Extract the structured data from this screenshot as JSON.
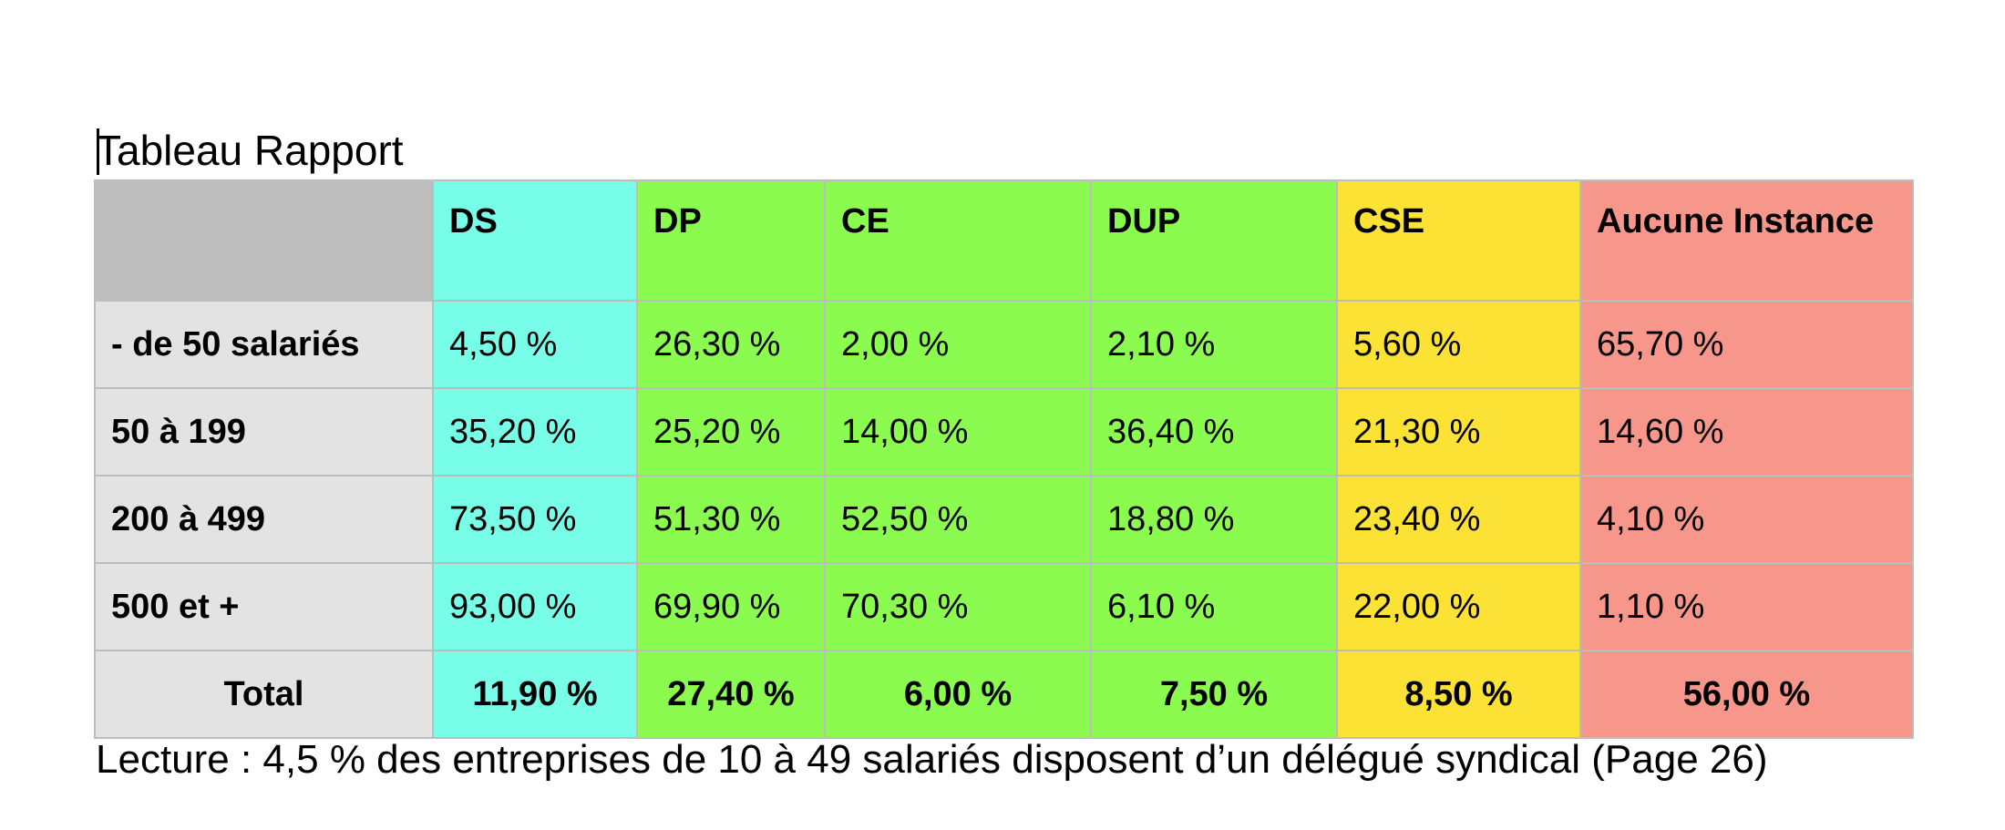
{
  "title": "Tableau Rapport",
  "colors": {
    "grey_header": "#bdbebd",
    "grey_rowhead": "#e3e3e3",
    "grid_line": "#bdbdbd",
    "DS": "#77fde8",
    "DP": "#8bfb4f",
    "CE": "#8bfb4f",
    "DUP": "#8bfb4f",
    "CSE": "#fbe235",
    "Aucune": "#f7968a"
  },
  "table": {
    "corner": "",
    "columns": [
      {
        "label": "DS",
        "color_key": "DS"
      },
      {
        "label": "DP",
        "color_key": "DP"
      },
      {
        "label": "CE",
        "color_key": "CE"
      },
      {
        "label": "DUP",
        "color_key": "DUP"
      },
      {
        "label": "CSE",
        "color_key": "CSE"
      },
      {
        "label": "Aucune Instance",
        "color_key": "Aucune"
      }
    ],
    "rows": [
      {
        "label": "- de 50 salariés",
        "values": [
          "4,50 %",
          "26,30 %",
          "2,00 %",
          "2,10 %",
          "5,60 %",
          "65,70 %"
        ]
      },
      {
        "label": "50 à 199",
        "values": [
          "35,20 %",
          "25,20 %",
          "14,00 %",
          "36,40 %",
          "21,30 %",
          "14,60 %"
        ]
      },
      {
        "label": "200 à 499",
        "values": [
          "73,50 %",
          "51,30 %",
          "52,50 %",
          "18,80 %",
          "23,40 %",
          "4,10 %"
        ]
      },
      {
        "label": "500 et +",
        "values": [
          "93,00 %",
          "69,90 %",
          "70,30 %",
          "6,10 %",
          "22,00 %",
          "1,10 %"
        ]
      }
    ],
    "total": {
      "label": "Total",
      "values": [
        "11,90 %",
        "27,40 %",
        "6,00 %",
        "7,50 %",
        "8,50 %",
        "56,00 %"
      ]
    }
  },
  "caption": "Lecture : 4,5 % des entreprises de 10 à 49 salariés disposent d’un délégué syndical (Page 26)"
}
